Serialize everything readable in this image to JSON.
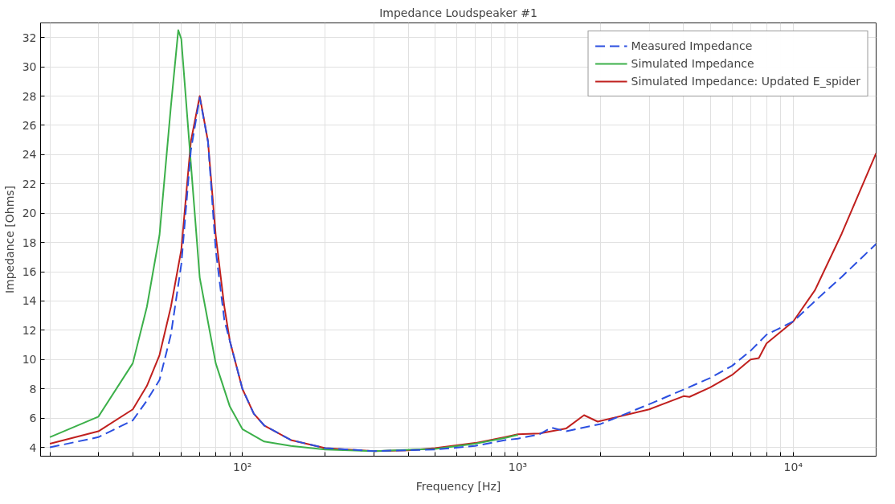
{
  "chart_data": {
    "type": "line",
    "title": "Impedance Loudspeaker #1",
    "xlabel": "Frequency [Hz]",
    "ylabel": "Impedance [Ohms]",
    "log": "x",
    "xlim": [
      18.5,
      20000
    ],
    "ylim": [
      3.4,
      33
    ],
    "xticks": [
      {
        "value": 20,
        "label": null
      },
      {
        "value": 30,
        "label": null
      },
      {
        "value": 40,
        "label": null
      },
      {
        "value": 50,
        "label": null
      },
      {
        "value": 60,
        "label": null
      },
      {
        "value": 70,
        "label": null
      },
      {
        "value": 80,
        "label": null
      },
      {
        "value": 90,
        "label": null
      },
      {
        "value": 100,
        "label": "10²"
      },
      {
        "value": 200,
        "label": null
      },
      {
        "value": 300,
        "label": null
      },
      {
        "value": 400,
        "label": null
      },
      {
        "value": 500,
        "label": null
      },
      {
        "value": 600,
        "label": null
      },
      {
        "value": 700,
        "label": null
      },
      {
        "value": 800,
        "label": null
      },
      {
        "value": 900,
        "label": null
      },
      {
        "value": 1000,
        "label": "10³"
      },
      {
        "value": 2000,
        "label": null
      },
      {
        "value": 3000,
        "label": null
      },
      {
        "value": 4000,
        "label": null
      },
      {
        "value": 5000,
        "label": null
      },
      {
        "value": 6000,
        "label": null
      },
      {
        "value": 7000,
        "label": null
      },
      {
        "value": 8000,
        "label": null
      },
      {
        "value": 9000,
        "label": null
      },
      {
        "value": 10000,
        "label": "10⁴"
      }
    ],
    "yticks": [
      4,
      6,
      8,
      10,
      12,
      14,
      16,
      18,
      20,
      22,
      24,
      26,
      28,
      30,
      32
    ],
    "grid": true,
    "legend": "top right",
    "series": [
      {
        "name": "Measured Impedance",
        "color": "#2b4fe0",
        "line_style": "dashed",
        "x": [
          20,
          30,
          40,
          45,
          50,
          55,
          60,
          65,
          70,
          75,
          80,
          86,
          100,
          110,
          120,
          150,
          200,
          300,
          500,
          700,
          900,
          1000,
          1200,
          1320,
          1500,
          2000,
          3000,
          4000,
          5000,
          6000,
          7000,
          8000,
          10000,
          12000,
          15000,
          20000
        ],
        "values": [
          4.0,
          4.7,
          5.85,
          7.2,
          8.6,
          11.7,
          16.5,
          24.3,
          27.9,
          24.9,
          17.5,
          12.7,
          8.0,
          6.3,
          5.5,
          4.5,
          3.95,
          3.75,
          3.85,
          4.1,
          4.5,
          4.6,
          4.9,
          5.35,
          5.1,
          5.6,
          6.95,
          7.95,
          8.75,
          9.57,
          10.6,
          11.7,
          12.6,
          14.0,
          15.65,
          17.9
        ]
      },
      {
        "name": "Simulated Impedance",
        "color": "#3cb04a",
        "line_style": "solid",
        "x": [
          20,
          30,
          40,
          45,
          50,
          55,
          58.5,
          60,
          65,
          70,
          80,
          90,
          100,
          120,
          150,
          200,
          300,
          500,
          700,
          900,
          1000
        ],
        "values": [
          4.7,
          6.1,
          9.75,
          13.6,
          18.5,
          27.3,
          32.5,
          31.9,
          23.4,
          15.6,
          9.75,
          6.8,
          5.25,
          4.4,
          4.1,
          3.85,
          3.75,
          3.9,
          4.25,
          4.65,
          4.85
        ]
      },
      {
        "name": "Simulated Impedance: Updated E_spider",
        "color": "#c0201e",
        "line_style": "solid",
        "x": [
          20,
          30,
          40,
          45,
          50,
          55,
          60,
          65,
          70,
          75,
          80,
          86,
          90,
          100,
          110,
          120,
          150,
          200,
          300,
          400,
          500,
          700,
          900,
          1000,
          1200,
          1500,
          1740,
          1950,
          3000,
          4000,
          4200,
          5000,
          6000,
          7000,
          7500,
          8000,
          10000,
          12000,
          15000,
          20000
        ],
        "values": [
          4.25,
          5.1,
          6.6,
          8.2,
          10.3,
          13.6,
          17.5,
          24.9,
          28.0,
          24.9,
          18.5,
          13.6,
          11.3,
          8.0,
          6.3,
          5.5,
          4.5,
          3.95,
          3.75,
          3.8,
          3.95,
          4.3,
          4.7,
          4.9,
          4.95,
          5.3,
          6.2,
          5.76,
          6.6,
          7.5,
          7.45,
          8.1,
          8.95,
          10.0,
          10.1,
          11.1,
          12.6,
          14.75,
          18.6,
          24.1
        ]
      }
    ]
  }
}
